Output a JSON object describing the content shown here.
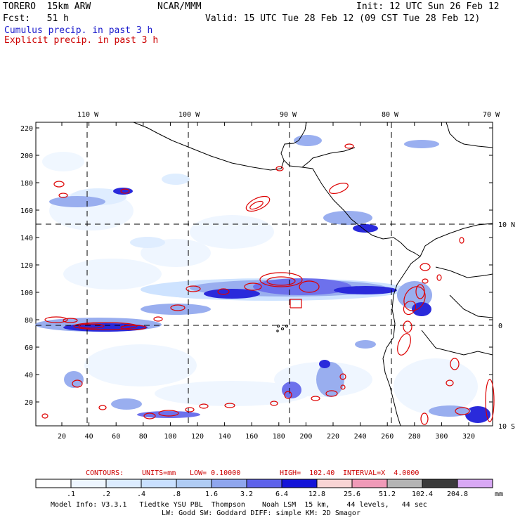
{
  "header": {
    "model": "TORERO  15km ARW",
    "org": "NCAR/MMM",
    "init": "Init: 12 UTC Sun 26 Feb 12",
    "fcst": "Fcst:   51 h",
    "valid": "Valid: 15 UTC Tue 28 Feb 12 (09 CST Tue 28 Feb 12)",
    "cumulus": "Cumulus precip. in past 3 h",
    "explicit": "Explicit precip. in past 3 h"
  },
  "colors": {
    "cumulus": "#1a1acc",
    "explicit": "#cc0000",
    "contour": "#dd0000",
    "coast": "#000000"
  },
  "map": {
    "lon_labels": [
      "110 W",
      "100 W",
      "90 W",
      "80 W",
      "70 W"
    ],
    "lat_labels": [
      "10 N",
      "0",
      "10 S"
    ],
    "y_ticks": [
      "220",
      "200",
      "180",
      "160",
      "140",
      "120",
      "100",
      "80",
      "60",
      "40",
      "20"
    ],
    "x_ticks": [
      "20",
      "40",
      "60",
      "80",
      "100",
      "120",
      "140",
      "160",
      "180",
      "200",
      "220",
      "240",
      "260",
      "280",
      "300",
      "320"
    ]
  },
  "contours": {
    "label": "CONTOURS:",
    "units": "UNITS=mm",
    "low": "LOW= 0.10000",
    "high": "HIGH=  102.40",
    "interval": "INTERVAL=X  4.0000"
  },
  "colorbar": {
    "units": "mm",
    "labels": [
      ".1",
      ".2",
      ".4",
      ".8",
      "1.6",
      "3.2",
      "6.4",
      "12.8",
      "25.6",
      "51.2",
      "102.4",
      "204.8"
    ],
    "colors": [
      "#ffffff",
      "#eef6ff",
      "#dcecff",
      "#c9e0ff",
      "#b0ccf4",
      "#8fa6ee",
      "#5e62ea",
      "#1414d8",
      "#f8d4d4",
      "#f09ab8",
      "#b4b4b4",
      "#3a3a3a",
      "#d8a8f4"
    ]
  },
  "footer": {
    "line1": "Model Info: V3.3.1   Tiedtke YSU PBL  Thompson    Noah LSM  15 km,    44 levels,   44 sec",
    "line2": "LW: Godd SW: Goddard DIFF: simple KM: 2D Smagor"
  }
}
